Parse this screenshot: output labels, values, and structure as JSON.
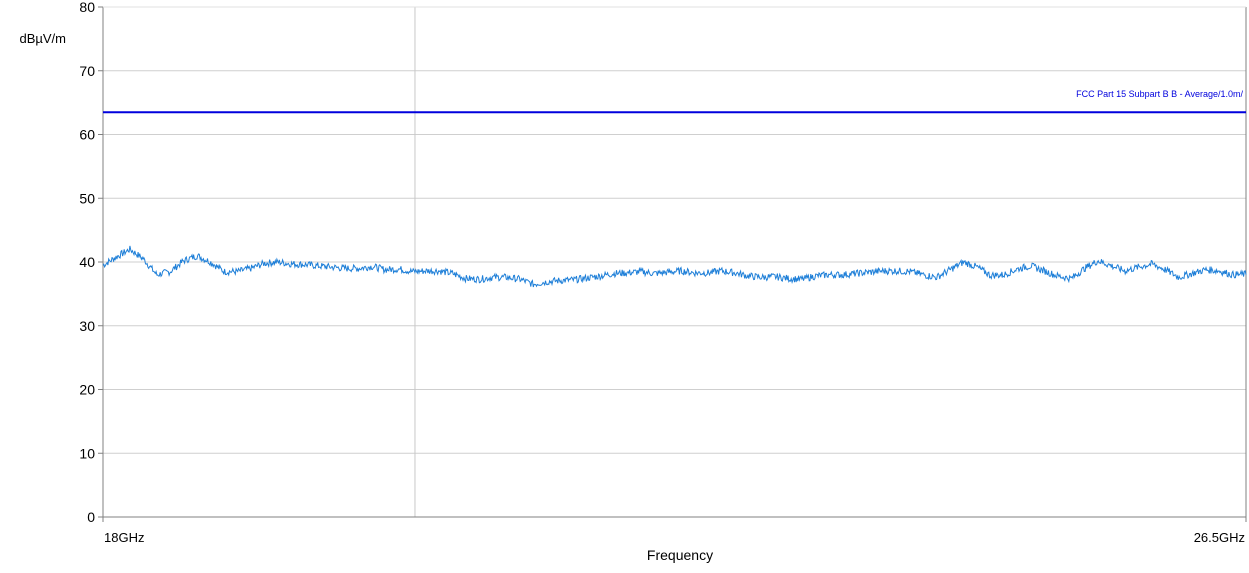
{
  "chart_data": {
    "type": "line",
    "title": "",
    "xlabel": "Frequency",
    "ylabel": "dBµV/m",
    "x_unit": "GHz",
    "xlim": [
      18,
      26.5
    ],
    "ylim": [
      0,
      80
    ],
    "y_ticks": [
      "0",
      "10",
      "20",
      "30",
      "40",
      "50",
      "60",
      "70",
      "80"
    ],
    "x_tick_labels": [
      "18GHz",
      "26.5GHz"
    ],
    "marker_x": 20.32,
    "grid": true,
    "limit_line": {
      "label": "FCC Part 15 Subpart B B - Average/1.0m/",
      "value": 63.5,
      "color": "#0000dd"
    },
    "series": [
      {
        "color": "#1e7fd8",
        "x": [
          18.0,
          18.1,
          18.2,
          18.3,
          18.4,
          18.5,
          18.6,
          18.7,
          18.8,
          18.9,
          19.0,
          19.1,
          19.2,
          19.3,
          19.4,
          19.5,
          19.6,
          19.7,
          19.8,
          19.9,
          20.0,
          20.1,
          20.2,
          20.3,
          20.4,
          20.5,
          20.6,
          20.7,
          20.8,
          20.9,
          21.0,
          21.1,
          21.2,
          21.3,
          21.4,
          21.5,
          21.6,
          21.7,
          21.8,
          21.9,
          22.0,
          22.1,
          22.2,
          22.3,
          22.4,
          22.5,
          22.6,
          22.7,
          22.8,
          22.9,
          23.0,
          23.1,
          23.2,
          23.3,
          23.4,
          23.5,
          23.6,
          23.7,
          23.8,
          23.9,
          24.0,
          24.1,
          24.2,
          24.3,
          24.4,
          24.5,
          24.6,
          24.7,
          24.8,
          24.9,
          25.0,
          25.1,
          25.2,
          25.3,
          25.4,
          25.5,
          25.6,
          25.7,
          25.8,
          25.9,
          26.0,
          26.1,
          26.2,
          26.3,
          26.4,
          26.5
        ],
        "y": [
          39.5,
          40.8,
          42.0,
          40.5,
          38.0,
          38.5,
          40.2,
          41.0,
          40.0,
          38.5,
          38.5,
          39.0,
          39.8,
          40.0,
          39.7,
          39.6,
          39.4,
          39.2,
          39.0,
          39.0,
          39.3,
          38.8,
          38.9,
          38.5,
          38.6,
          38.6,
          38.2,
          37.4,
          37.3,
          37.6,
          37.6,
          37.3,
          36.5,
          36.9,
          37.1,
          37.2,
          37.5,
          37.8,
          38.2,
          38.3,
          38.5,
          38.2,
          38.4,
          38.6,
          38.3,
          38.3,
          38.6,
          38.3,
          37.8,
          37.6,
          37.7,
          37.4,
          37.3,
          37.8,
          38.0,
          38.0,
          38.2,
          38.4,
          38.6,
          38.6,
          38.5,
          38.0,
          37.6,
          38.8,
          40.0,
          39.2,
          37.9,
          38.0,
          38.9,
          39.4,
          38.6,
          37.8,
          37.4,
          39.0,
          40.2,
          39.4,
          38.6,
          39.2,
          39.7,
          38.8,
          37.6,
          38.2,
          38.8,
          38.6,
          38.0,
          38.1
        ]
      }
    ]
  }
}
